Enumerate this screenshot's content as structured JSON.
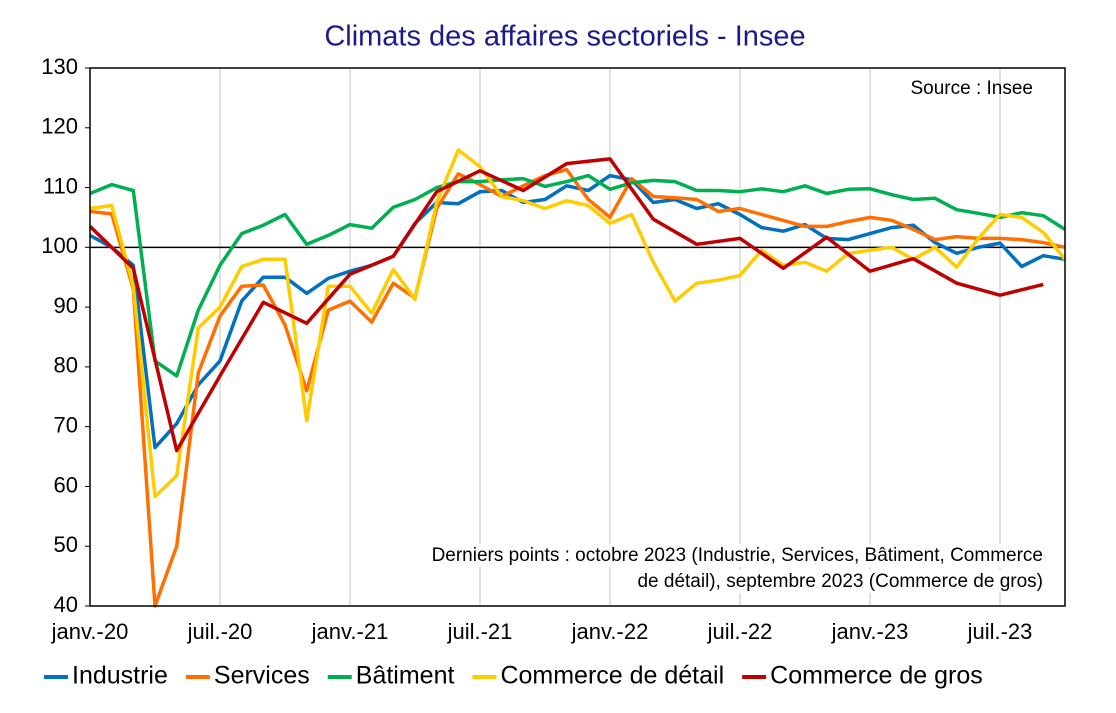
{
  "chart_data": {
    "type": "line",
    "title": "Climats des affaires sectoriels - Insee",
    "source": "Source : Insee",
    "note": [
      "Derniers points : octobre 2023 (Industrie, Services, Bâtiment, Commerce",
      "de détail), septembre 2023 (Commerce de gros)"
    ],
    "categories": [
      "janv.-20",
      null,
      null,
      null,
      null,
      null,
      "juil.-20",
      null,
      null,
      null,
      null,
      null,
      "janv.-21",
      null,
      null,
      null,
      null,
      null,
      "juil.-21",
      null,
      null,
      null,
      null,
      null,
      "janv.-22",
      null,
      null,
      null,
      null,
      null,
      "juil.-22",
      null,
      null,
      null,
      null,
      null,
      "janv.-23",
      null,
      null,
      null,
      null,
      null,
      "juil.-23",
      null,
      null,
      null
    ],
    "ylim": [
      40,
      130
    ],
    "yticks": [
      40,
      50,
      60,
      70,
      80,
      90,
      100,
      110,
      120,
      130
    ],
    "reference_line": 100,
    "grid": "x",
    "series": [
      {
        "name": "Industrie",
        "color": "#0070c0",
        "values": [
          102,
          100,
          97,
          66.5,
          70.5,
          77,
          81,
          91,
          95,
          95,
          92.3,
          94.8,
          96,
          97,
          98.5,
          104,
          107.5,
          107.3,
          109.3,
          109.5,
          107.5,
          108,
          110.3,
          109.5,
          112,
          111.3,
          107.5,
          108,
          106.5,
          107.3,
          105.5,
          103.3,
          102.7,
          103.8,
          101.5,
          101.3,
          102.3,
          103.3,
          103.7,
          100.8,
          99,
          100,
          100.7,
          96.8,
          98.6,
          98
        ]
      },
      {
        "name": "Services",
        "color": "#ff7000",
        "values": [
          106,
          105.6,
          93,
          40,
          50,
          79,
          88.5,
          93.5,
          93.7,
          87,
          76,
          89.5,
          91,
          87.5,
          94,
          91.5,
          106.5,
          112.3,
          110.5,
          108.5,
          110.3,
          112,
          113,
          108,
          105,
          111.5,
          108.5,
          108.3,
          108,
          106,
          106.5,
          105.5,
          104.5,
          103.5,
          103.5,
          104.3,
          105,
          104.5,
          103,
          101.3,
          101.8,
          101.5,
          101.5,
          101.3,
          100.8,
          100
        ]
      },
      {
        "name": "Bâtiment",
        "color": "#00b050",
        "values": [
          109,
          110.5,
          109.5,
          81,
          78.5,
          89.5,
          97,
          102.3,
          103.7,
          105.5,
          100.5,
          102,
          103.8,
          103.2,
          106.7,
          108,
          110,
          111,
          111,
          111.3,
          111.5,
          110.2,
          111,
          112,
          109.7,
          110.8,
          111.2,
          111,
          109.5,
          109.5,
          109.3,
          109.8,
          109.3,
          110.3,
          109,
          109.7,
          109.8,
          108.8,
          108,
          108.2,
          106.3,
          105.7,
          105,
          105.8,
          105.3,
          103
        ]
      },
      {
        "name": "Commerce de détail",
        "color": "#ffcc00",
        "values": [
          106.5,
          107,
          93.5,
          58.3,
          61.8,
          86.5,
          90,
          96.8,
          98,
          98,
          71,
          93.5,
          93.5,
          89,
          96.3,
          91.3,
          107.5,
          116.3,
          113.5,
          108.5,
          107.8,
          106.5,
          107.8,
          107,
          104,
          105.5,
          97.5,
          91,
          94,
          94.5,
          95.3,
          99.5,
          97,
          97.5,
          96,
          99,
          99.5,
          100,
          98,
          100,
          96.7,
          101.5,
          105.5,
          105,
          102.5,
          98
        ]
      },
      {
        "name": "Commerce de gros",
        "color": "#c00000",
        "connect_gaps": true,
        "values": [
          103.5,
          null,
          96.5,
          null,
          66,
          null,
          78.5,
          null,
          90.8,
          null,
          87.3,
          null,
          95.5,
          null,
          98.5,
          null,
          109.3,
          null,
          112.8,
          null,
          109.5,
          null,
          114,
          null,
          114.8,
          null,
          104.7,
          null,
          100.5,
          null,
          101.5,
          null,
          96.5,
          null,
          101.7,
          null,
          96,
          null,
          98.1,
          null,
          94,
          null,
          92,
          null,
          93.8,
          null
        ]
      }
    ]
  }
}
